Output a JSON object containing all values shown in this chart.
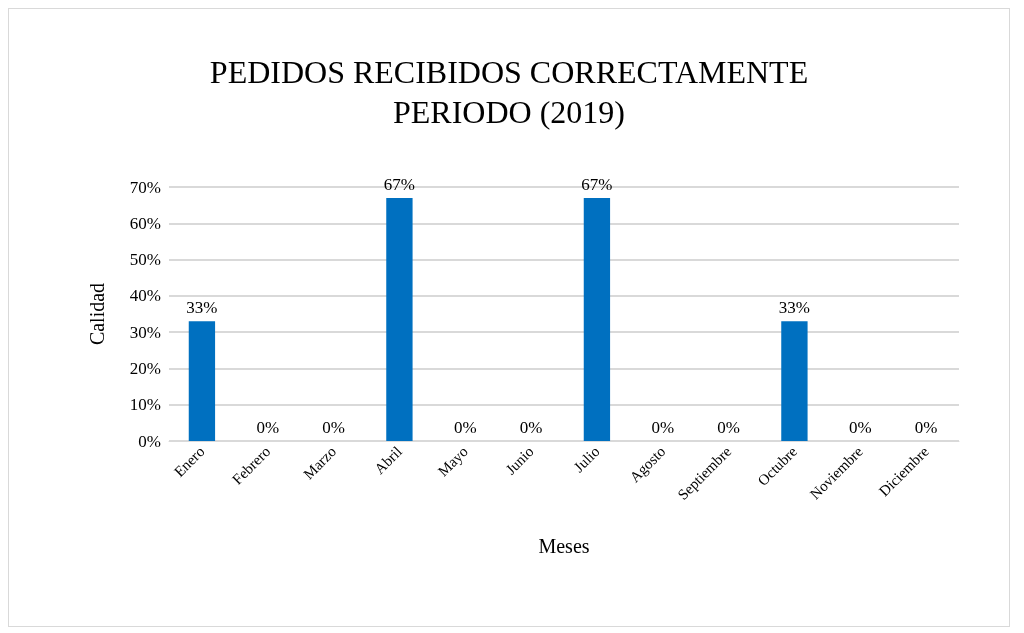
{
  "chart_data": {
    "type": "bar",
    "title": "PEDIDOS RECIBIDOS CORRECTAMENTE\nPERIODO (2019)",
    "xlabel": "Meses",
    "ylabel": "Calidad",
    "categories": [
      "Enero",
      "Febrero",
      "Marzo",
      "Abril",
      "Mayo",
      "Junio",
      "Julio",
      "Agosto",
      "Septiembre",
      "Octubre",
      "Noviembre",
      "Diciembre"
    ],
    "values": [
      33,
      0,
      0,
      67,
      0,
      0,
      67,
      0,
      0,
      33,
      0,
      0
    ],
    "value_labels": [
      "33%",
      "0%",
      "0%",
      "67%",
      "0%",
      "0%",
      "67%",
      "0%",
      "0%",
      "33%",
      "0%",
      "0%"
    ],
    "color": "#0070c0",
    "ylim": [
      0,
      70
    ],
    "yticks": [
      {
        "value": 0,
        "label": "0%"
      },
      {
        "value": 10,
        "label": "10%"
      },
      {
        "value": 20,
        "label": "20%"
      },
      {
        "value": 30,
        "label": "30%"
      },
      {
        "value": 40,
        "label": "40%"
      },
      {
        "value": 50,
        "label": "50%"
      },
      {
        "value": 60,
        "label": "60%"
      },
      {
        "value": 70,
        "label": "70%"
      }
    ],
    "grid": "y"
  }
}
